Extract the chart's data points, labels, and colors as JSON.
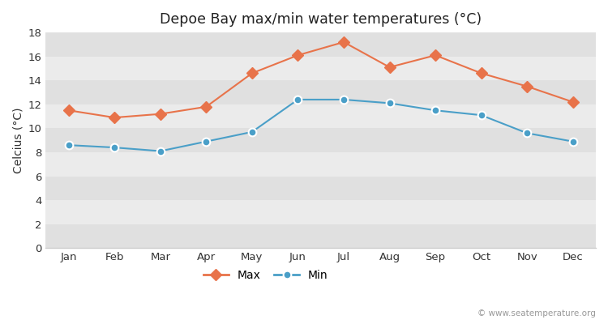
{
  "title": "Depoe Bay max/min water temperatures (°C)",
  "ylabel": "Celcius (°C)",
  "months": [
    "Jan",
    "Feb",
    "Mar",
    "Apr",
    "May",
    "Jun",
    "Jul",
    "Aug",
    "Sep",
    "Oct",
    "Nov",
    "Dec"
  ],
  "max_temps": [
    11.5,
    10.9,
    11.2,
    11.8,
    14.6,
    16.1,
    17.2,
    15.1,
    16.1,
    14.6,
    13.5,
    12.2
  ],
  "min_temps": [
    8.6,
    8.4,
    8.1,
    8.9,
    9.7,
    12.4,
    12.4,
    12.1,
    11.5,
    11.1,
    9.6,
    8.9
  ],
  "max_color": "#e8734a",
  "min_color": "#4a9fc8",
  "band_light": "#ebebeb",
  "band_dark": "#e0e0e0",
  "ylim": [
    0,
    18
  ],
  "yticks": [
    0,
    2,
    4,
    6,
    8,
    10,
    12,
    14,
    16,
    18
  ],
  "watermark": "© www.seatemperature.org",
  "legend_max": "Max",
  "legend_min": "Min",
  "fig_bg": "#ffffff"
}
